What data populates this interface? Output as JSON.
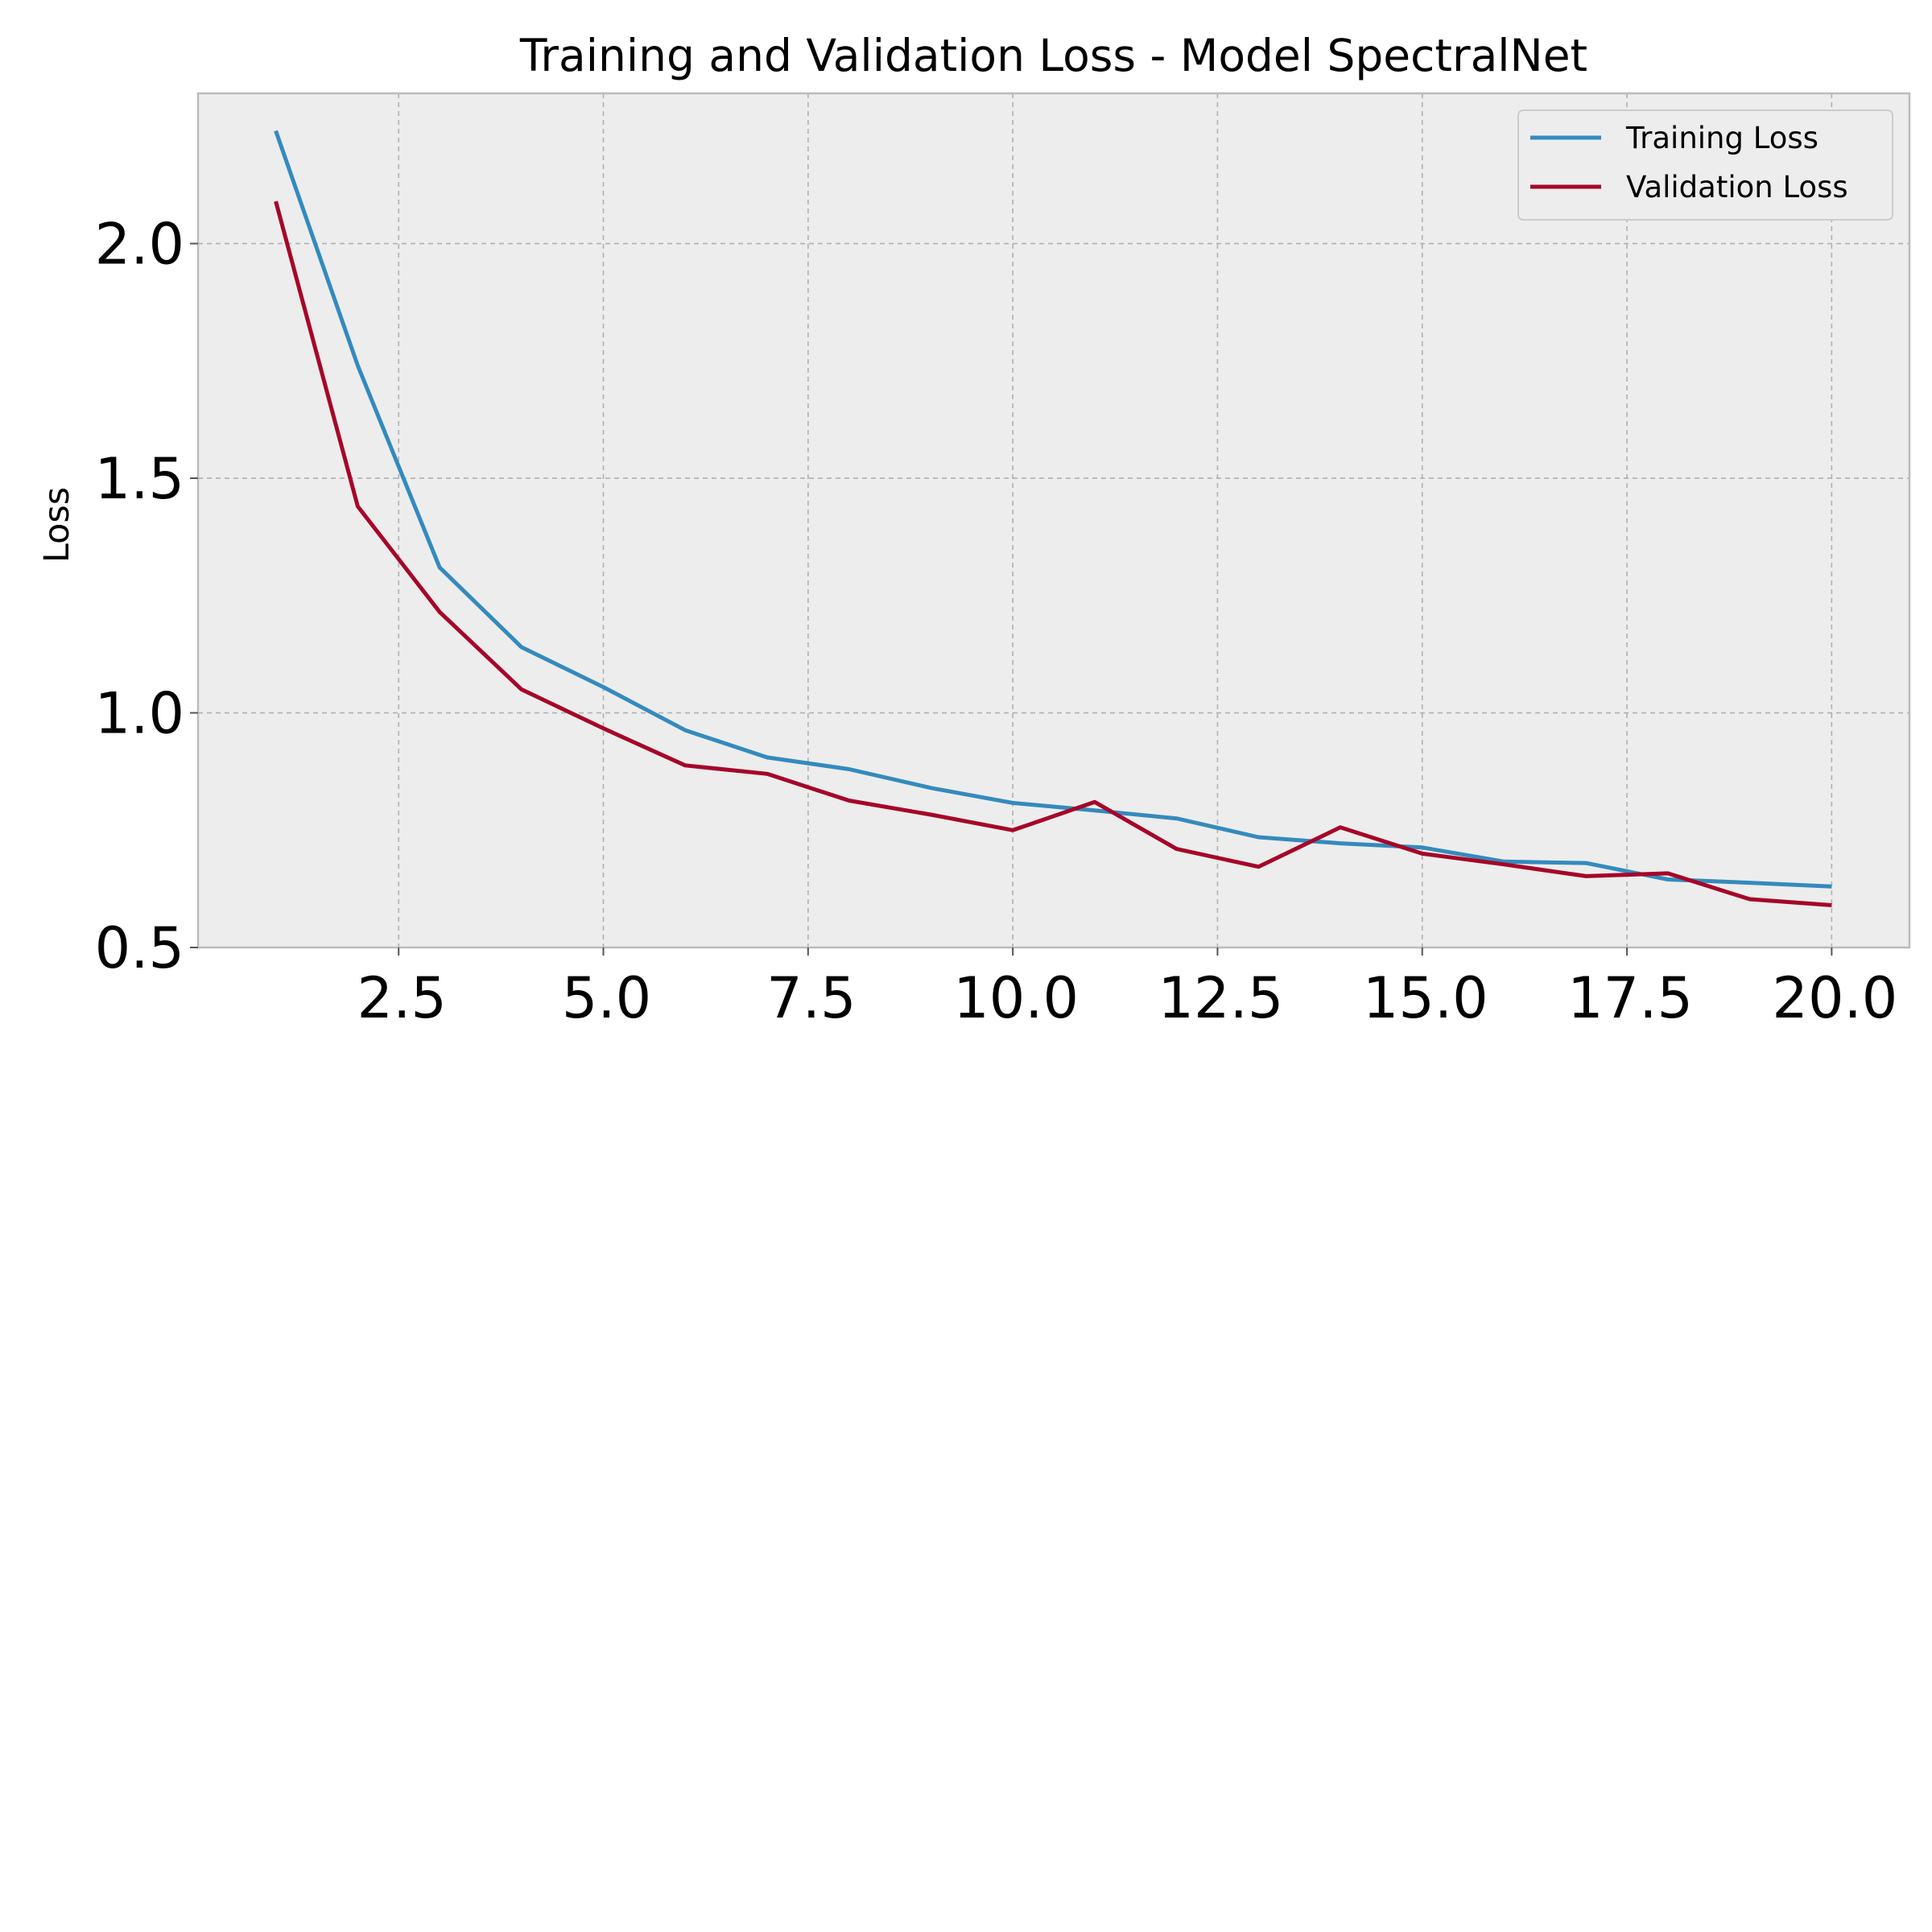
{
  "chart_data": {
    "type": "line",
    "title": "Training and Validation Loss - Model SpectralNet",
    "xlabel": "",
    "ylabel": "Loss",
    "x": [
      1,
      2,
      3,
      4,
      5,
      6,
      7,
      8,
      9,
      10,
      11,
      12,
      13,
      14,
      15,
      16,
      17,
      18,
      19,
      20
    ],
    "series": [
      {
        "name": "Training Loss",
        "color": "#348ABD",
        "values": [
          2.24,
          1.74,
          1.31,
          1.14,
          1.055,
          0.963,
          0.905,
          0.88,
          0.84,
          0.808,
          0.792,
          0.775,
          0.735,
          0.722,
          0.713,
          0.683,
          0.68,
          0.645,
          0.638,
          0.63
        ]
      },
      {
        "name": "Validation Loss",
        "color": "#A60628",
        "values": [
          2.09,
          1.44,
          1.215,
          1.05,
          0.967,
          0.888,
          0.87,
          0.813,
          0.783,
          0.75,
          0.81,
          0.71,
          0.672,
          0.756,
          0.7,
          0.677,
          0.652,
          0.658,
          0.603,
          0.59
        ]
      }
    ],
    "xlim": [
      0.05,
      20.95
    ],
    "ylim": [
      0.5,
      2.32
    ],
    "xticks": [
      "2.5",
      "5.0",
      "7.5",
      "10.0",
      "12.5",
      "15.0",
      "17.5",
      "20.0"
    ],
    "yticks": [
      "0.5",
      "1.0",
      "1.5",
      "2.0"
    ],
    "grid": true,
    "legend_position": "top-right",
    "background_color": "#EDEDED"
  }
}
